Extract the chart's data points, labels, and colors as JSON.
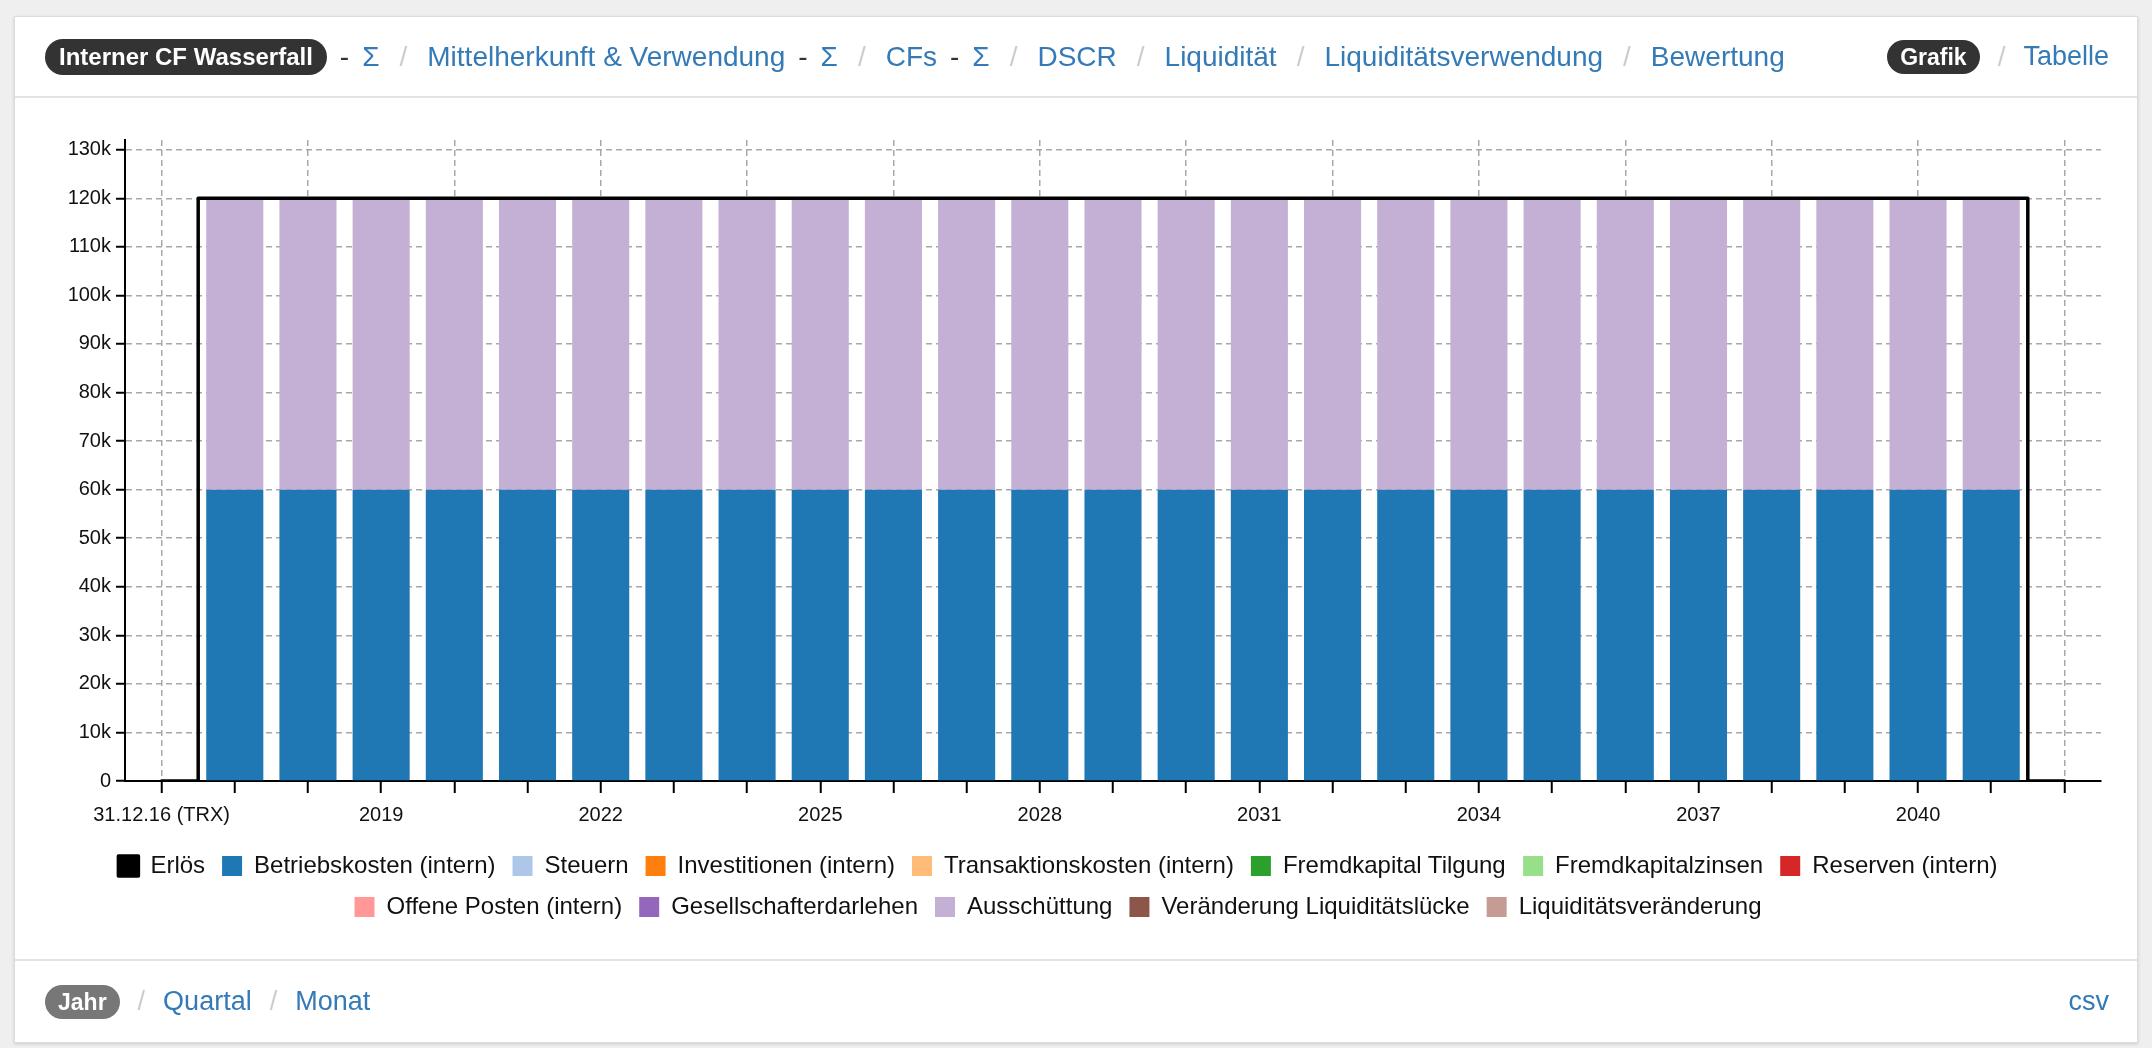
{
  "chart_data": {
    "type": "bar",
    "title": "Interner CF Wasserfall",
    "annotations": [
      "-",
      "Σ",
      "/",
      "Mittelherkunft & Verwendung",
      "-",
      "Σ",
      "/",
      "CFs",
      "-",
      "Σ",
      "/",
      "DSCR",
      "/",
      "Liquidität",
      "/",
      "Liquiditätsverwendung",
      "/",
      "Bewertung",
      "Grafik",
      "/",
      "Tabelle",
      "Jahr",
      "/",
      "Quartal",
      "/",
      "Monat",
      "csv"
    ],
    "categories": [
      "31.12.16 (TRX)",
      null,
      null,
      "2019",
      null,
      null,
      "2022",
      null,
      null,
      "2025",
      null,
      null,
      "2028",
      null,
      null,
      "2031",
      null,
      null,
      "2034",
      null,
      null,
      "2037",
      null,
      null,
      "2040",
      null,
      null
    ],
    "stacked": true,
    "series": [
      {
        "name": "Erlös",
        "type": "step",
        "color": "#000000",
        "values": [
          0,
          120000,
          120000,
          120000,
          120000,
          120000,
          120000,
          120000,
          120000,
          120000,
          120000,
          120000,
          120000,
          120000,
          120000,
          120000,
          120000,
          120000,
          120000,
          120000,
          120000,
          120000,
          120000,
          120000,
          120000,
          120000,
          0
        ]
      },
      {
        "name": "Betriebskosten (intern)",
        "color": "#1f77b4",
        "values": [
          null,
          60000,
          60000,
          60000,
          60000,
          60000,
          60000,
          60000,
          60000,
          60000,
          60000,
          60000,
          60000,
          60000,
          60000,
          60000,
          60000,
          60000,
          60000,
          60000,
          60000,
          60000,
          60000,
          60000,
          60000,
          60000,
          null
        ]
      },
      {
        "name": "Steuern",
        "color": "#aec7e8",
        "values": [
          null,
          0,
          0,
          0,
          0,
          0,
          0,
          0,
          0,
          0,
          0,
          0,
          0,
          0,
          0,
          0,
          0,
          0,
          0,
          0,
          0,
          0,
          0,
          0,
          0,
          0,
          null
        ]
      },
      {
        "name": "Investitionen (intern)",
        "color": "#ff7f0e",
        "values": [
          null,
          0,
          0,
          0,
          0,
          0,
          0,
          0,
          0,
          0,
          0,
          0,
          0,
          0,
          0,
          0,
          0,
          0,
          0,
          0,
          0,
          0,
          0,
          0,
          0,
          0,
          null
        ]
      },
      {
        "name": "Transaktionskosten (intern)",
        "color": "#ffbb78",
        "values": [
          null,
          0,
          0,
          0,
          0,
          0,
          0,
          0,
          0,
          0,
          0,
          0,
          0,
          0,
          0,
          0,
          0,
          0,
          0,
          0,
          0,
          0,
          0,
          0,
          0,
          0,
          null
        ]
      },
      {
        "name": "Fremdkapital Tilgung",
        "color": "#2ca02c",
        "values": [
          null,
          0,
          0,
          0,
          0,
          0,
          0,
          0,
          0,
          0,
          0,
          0,
          0,
          0,
          0,
          0,
          0,
          0,
          0,
          0,
          0,
          0,
          0,
          0,
          0,
          0,
          null
        ]
      },
      {
        "name": "Fremdkapitalzinsen",
        "color": "#98df8a",
        "values": [
          null,
          0,
          0,
          0,
          0,
          0,
          0,
          0,
          0,
          0,
          0,
          0,
          0,
          0,
          0,
          0,
          0,
          0,
          0,
          0,
          0,
          0,
          0,
          0,
          0,
          0,
          null
        ]
      },
      {
        "name": "Reserven (intern)",
        "color": "#d62728",
        "values": [
          null,
          0,
          0,
          0,
          0,
          0,
          0,
          0,
          0,
          0,
          0,
          0,
          0,
          0,
          0,
          0,
          0,
          0,
          0,
          0,
          0,
          0,
          0,
          0,
          0,
          0,
          null
        ]
      },
      {
        "name": "Offene Posten (intern)",
        "color": "#ff9896",
        "values": [
          null,
          0,
          0,
          0,
          0,
          0,
          0,
          0,
          0,
          0,
          0,
          0,
          0,
          0,
          0,
          0,
          0,
          0,
          0,
          0,
          0,
          0,
          0,
          0,
          0,
          0,
          null
        ]
      },
      {
        "name": "Gesellschafterdarlehen",
        "color": "#9467bd",
        "values": [
          null,
          0,
          0,
          0,
          0,
          0,
          0,
          0,
          0,
          0,
          0,
          0,
          0,
          0,
          0,
          0,
          0,
          0,
          0,
          0,
          0,
          0,
          0,
          0,
          0,
          0,
          null
        ]
      },
      {
        "name": "Ausschüttung",
        "color": "#c5b0d5",
        "values": [
          null,
          60000,
          60000,
          60000,
          60000,
          60000,
          60000,
          60000,
          60000,
          60000,
          60000,
          60000,
          60000,
          60000,
          60000,
          60000,
          60000,
          60000,
          60000,
          60000,
          60000,
          60000,
          60000,
          60000,
          60000,
          60000,
          null
        ]
      },
      {
        "name": "Veränderung Liquiditätslücke",
        "color": "#8c564b",
        "values": [
          null,
          0,
          0,
          0,
          0,
          0,
          0,
          0,
          0,
          0,
          0,
          0,
          0,
          0,
          0,
          0,
          0,
          0,
          0,
          0,
          0,
          0,
          0,
          0,
          0,
          0,
          null
        ]
      },
      {
        "name": "Liquiditätsveränderung",
        "color": "#c49c94",
        "values": [
          null,
          0,
          0,
          0,
          0,
          0,
          0,
          0,
          0,
          0,
          0,
          0,
          0,
          0,
          0,
          0,
          0,
          0,
          0,
          0,
          0,
          0,
          0,
          0,
          0,
          0,
          null
        ]
      }
    ],
    "ylim": [
      0,
      132000
    ],
    "yticks": [
      0,
      {
        "value": 10000,
        "label": "10k"
      },
      {
        "value": 20000,
        "label": "20k"
      },
      {
        "value": 30000,
        "label": "30k"
      },
      {
        "value": 40000,
        "label": "40k"
      },
      {
        "value": 50000,
        "label": "50k"
      },
      {
        "value": 60000,
        "label": "60k"
      },
      {
        "value": 70000,
        "label": "70k"
      },
      {
        "value": 80000,
        "label": "80k"
      },
      {
        "value": 90000,
        "label": "90k"
      },
      {
        "value": 100000,
        "label": "100k"
      },
      {
        "value": 110000,
        "label": "110k"
      },
      {
        "value": 120000,
        "label": "120k"
      },
      {
        "value": 130000,
        "label": "130k"
      }
    ],
    "grid": true,
    "legend": "bottom",
    "marker": "none"
  }
}
